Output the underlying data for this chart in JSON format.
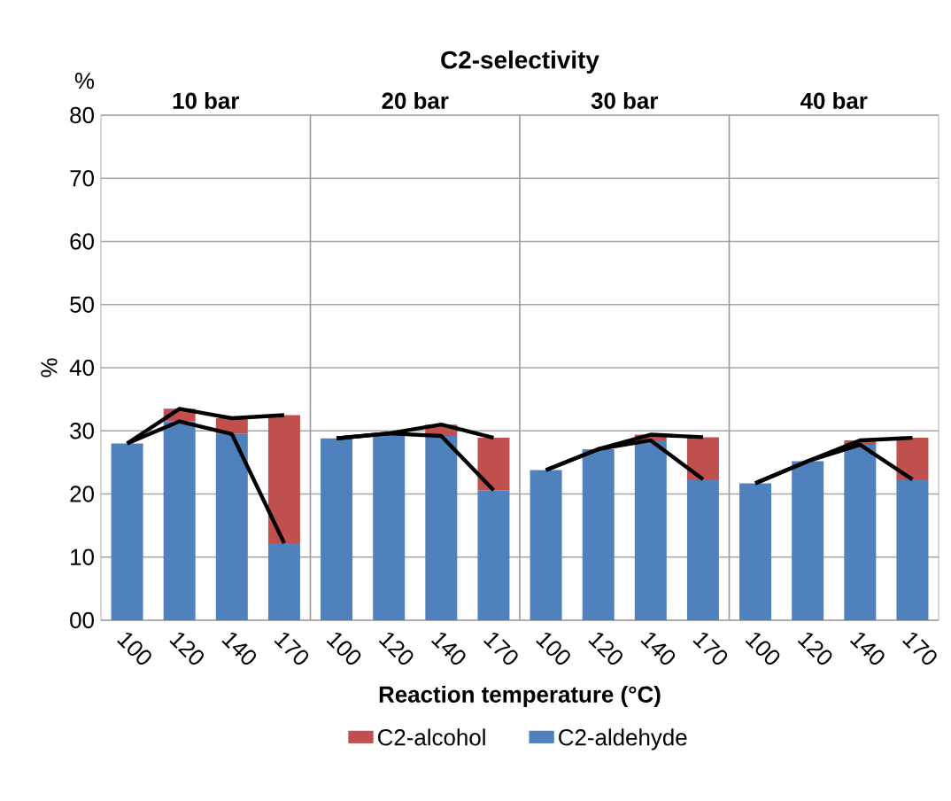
{
  "chart_data": {
    "type": "bar",
    "stacked": true,
    "title": "C2-selectivity",
    "xlabel": "Reaction temperature (°C)",
    "ylabel": "%",
    "annotations": [
      "%",
      "10 bar",
      "20 bar",
      "30 bar",
      "40 bar"
    ],
    "categories": [
      "100",
      "120",
      "140",
      "170",
      "100",
      "120",
      "140",
      "170",
      "100",
      "120",
      "140",
      "170",
      "100",
      "120",
      "140",
      "170"
    ],
    "series": [
      {
        "name": "C2-aldehyde",
        "color": "#4f81bd",
        "values": [
          28,
          31.5,
          29.5,
          12.2,
          28.8,
          29.6,
          29.2,
          20.6,
          23.8,
          27.1,
          28.5,
          22.3,
          21.7,
          25.2,
          27.8,
          22.3
        ]
      },
      {
        "name": "C2-alcohol",
        "color": "#c0504d",
        "values": [
          0,
          2,
          2.5,
          20.3,
          0,
          0,
          1.8,
          8.3,
          0,
          0,
          0.9,
          6.7,
          0,
          0,
          0.7,
          6.6
        ]
      },
      {
        "type": "line",
        "color": "#000000",
        "values": [
          28,
          33.5,
          32,
          32.5,
          null,
          null,
          null,
          null,
          null,
          null,
          null,
          null,
          null,
          null,
          null,
          null
        ]
      },
      {
        "type": "line",
        "color": "#000000",
        "values": [
          28,
          31.5,
          29.5,
          12.2,
          null,
          null,
          null,
          null,
          null,
          null,
          null,
          null,
          null,
          null,
          null,
          null
        ]
      },
      {
        "type": "line",
        "color": "#000000",
        "values": [
          null,
          null,
          null,
          null,
          28.8,
          29.6,
          31,
          28.9,
          null,
          null,
          null,
          null,
          null,
          null,
          null,
          null
        ]
      },
      {
        "type": "line",
        "color": "#000000",
        "values": [
          null,
          null,
          null,
          null,
          28.8,
          29.6,
          29.2,
          20.6,
          null,
          null,
          null,
          null,
          null,
          null,
          null,
          null
        ]
      },
      {
        "type": "line",
        "color": "#000000",
        "values": [
          null,
          null,
          null,
          null,
          null,
          null,
          null,
          null,
          23.8,
          27.1,
          29.4,
          29,
          null,
          null,
          null,
          null
        ]
      },
      {
        "type": "line",
        "color": "#000000",
        "values": [
          null,
          null,
          null,
          null,
          null,
          null,
          null,
          null,
          23.8,
          27.1,
          28.5,
          22.3,
          null,
          null,
          null,
          null
        ]
      },
      {
        "type": "line",
        "color": "#000000",
        "values": [
          null,
          null,
          null,
          null,
          null,
          null,
          null,
          null,
          null,
          null,
          null,
          null,
          21.7,
          25.2,
          28.5,
          28.9
        ]
      },
      {
        "type": "line",
        "color": "#000000",
        "values": [
          null,
          null,
          null,
          null,
          null,
          null,
          null,
          null,
          null,
          null,
          null,
          null,
          21.7,
          25.2,
          27.8,
          22.3
        ]
      }
    ],
    "ylim": [
      0,
      80
    ],
    "yticks": [
      {
        "value": 0,
        "label": "00"
      },
      10,
      20,
      30,
      40,
      50,
      60,
      70,
      80
    ],
    "grid": "y",
    "legend": "bottom"
  }
}
